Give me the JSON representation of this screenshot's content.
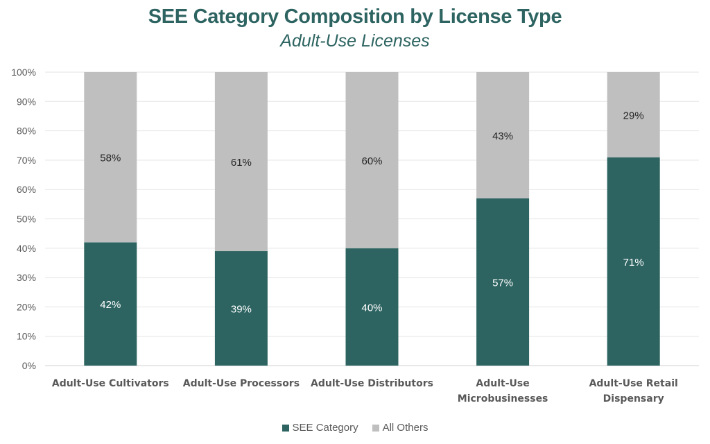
{
  "chart_data": {
    "type": "bar",
    "stacked": true,
    "percent_stacked": true,
    "title": "SEE Category Composition by License Type",
    "subtitle": "Adult-Use Licenses",
    "categories": [
      [
        "Adult-Use Cultivators"
      ],
      [
        "Adult-Use Processors"
      ],
      [
        "Adult-Use Distributors"
      ],
      [
        "Adult-Use",
        "Microbusinesses"
      ],
      [
        "Adult-Use Retail",
        "Dispensary"
      ]
    ],
    "series": [
      {
        "name": "SEE Category",
        "color": "#2d6461",
        "values": [
          42,
          39,
          40,
          57,
          71
        ],
        "labels": [
          "42%",
          "39%",
          "40%",
          "57%",
          "71%"
        ]
      },
      {
        "name": "All Others",
        "color": "#bfbfbf",
        "values": [
          58,
          61,
          60,
          43,
          29
        ],
        "labels": [
          "58%",
          "61%",
          "60%",
          "43%",
          "29%"
        ]
      }
    ],
    "ylim": [
      0,
      100
    ],
    "yticks": [
      "0%",
      "10%",
      "20%",
      "30%",
      "40%",
      "50%",
      "60%",
      "70%",
      "80%",
      "90%",
      "100%"
    ],
    "grid": true,
    "legend": "bottom"
  }
}
